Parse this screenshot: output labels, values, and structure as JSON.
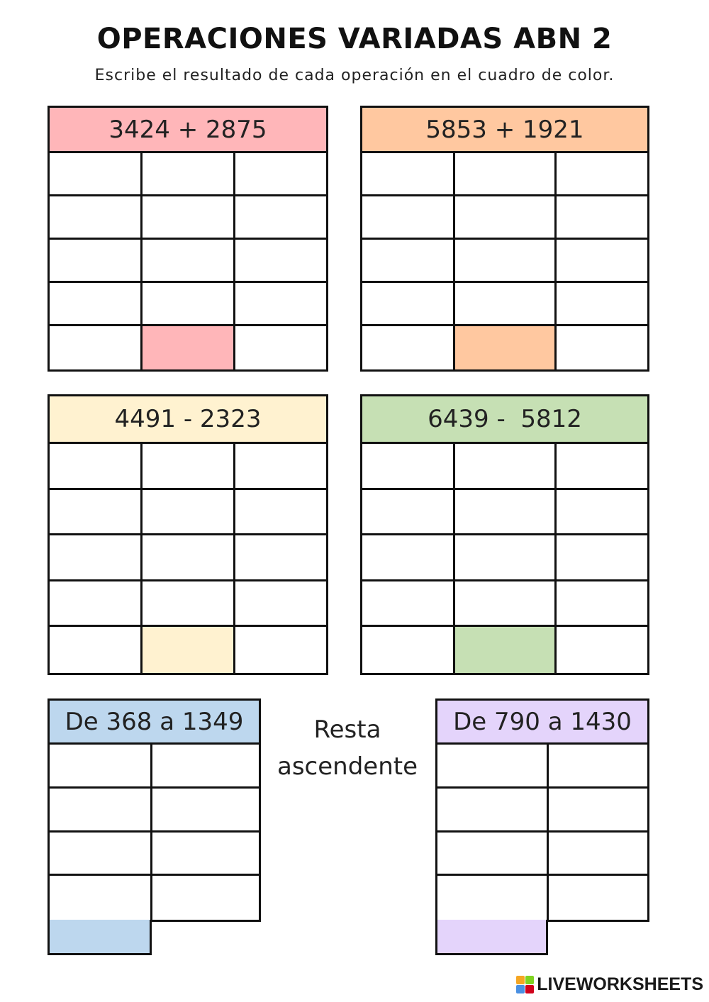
{
  "title": "OPERACIONES VARIADAS ABN 2",
  "subtitle": "Escribe el resultado de cada operación en el cuadro de color.",
  "operations": [
    {
      "label": "3424 + 2875",
      "color": "#ffb6b9"
    },
    {
      "label": "5853 + 1921",
      "color": "#ffc8a0"
    },
    {
      "label": "4491 - 2323",
      "color": "#fff2d0"
    },
    {
      "label": "6439 -  5812",
      "color": "#c6e0b4"
    }
  ],
  "ascending": [
    {
      "label": "De 368 a 1349",
      "color": "#bdd7ee"
    },
    {
      "label": "De 790 a 1430",
      "color": "#e4d4fb"
    }
  ],
  "center_label": {
    "line1": "Resta",
    "line2": "ascendente"
  },
  "brand": {
    "text": "LIVEWORKSHEETS",
    "logo_colors": [
      "#f5a623",
      "#7ed321",
      "#4a90e2",
      "#d0021b"
    ]
  }
}
